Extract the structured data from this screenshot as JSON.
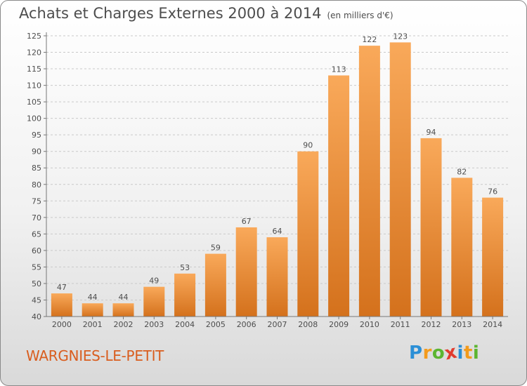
{
  "title": "Achats et Charges Externes 2000 à 2014",
  "subtitle": "(en milliers d'€)",
  "place": "WARGNIES-LE-PETIT",
  "logo": {
    "letters": [
      "P",
      "r",
      "o",
      "x",
      "i",
      "t",
      "i"
    ],
    "colors": [
      "#2b8fd6",
      "#f39b1c",
      "#5cb531",
      "#e23b2e",
      "#2b8fd6",
      "#f39b1c",
      "#5cb531"
    ]
  },
  "colors": {
    "bar_light": "#f9a95a",
    "bar_dark": "#d4711c",
    "text": "#4d4d4d",
    "place": "#d95d1e"
  },
  "chart_data": {
    "type": "bar",
    "categories": [
      "2000",
      "2001",
      "2002",
      "2003",
      "2004",
      "2005",
      "2006",
      "2007",
      "2008",
      "2009",
      "2010",
      "2011",
      "2012",
      "2013",
      "2014"
    ],
    "values": [
      47,
      44,
      44,
      49,
      53,
      59,
      67,
      64,
      90,
      113,
      122,
      123,
      94,
      82,
      76
    ],
    "ylim": [
      40,
      125
    ],
    "yticks": [
      40,
      45,
      50,
      55,
      60,
      65,
      70,
      75,
      80,
      85,
      90,
      95,
      100,
      105,
      110,
      115,
      120,
      125
    ],
    "grid": true,
    "title": "Achats et Charges Externes 2000 à 2014",
    "xlabel": "",
    "ylabel": ""
  }
}
